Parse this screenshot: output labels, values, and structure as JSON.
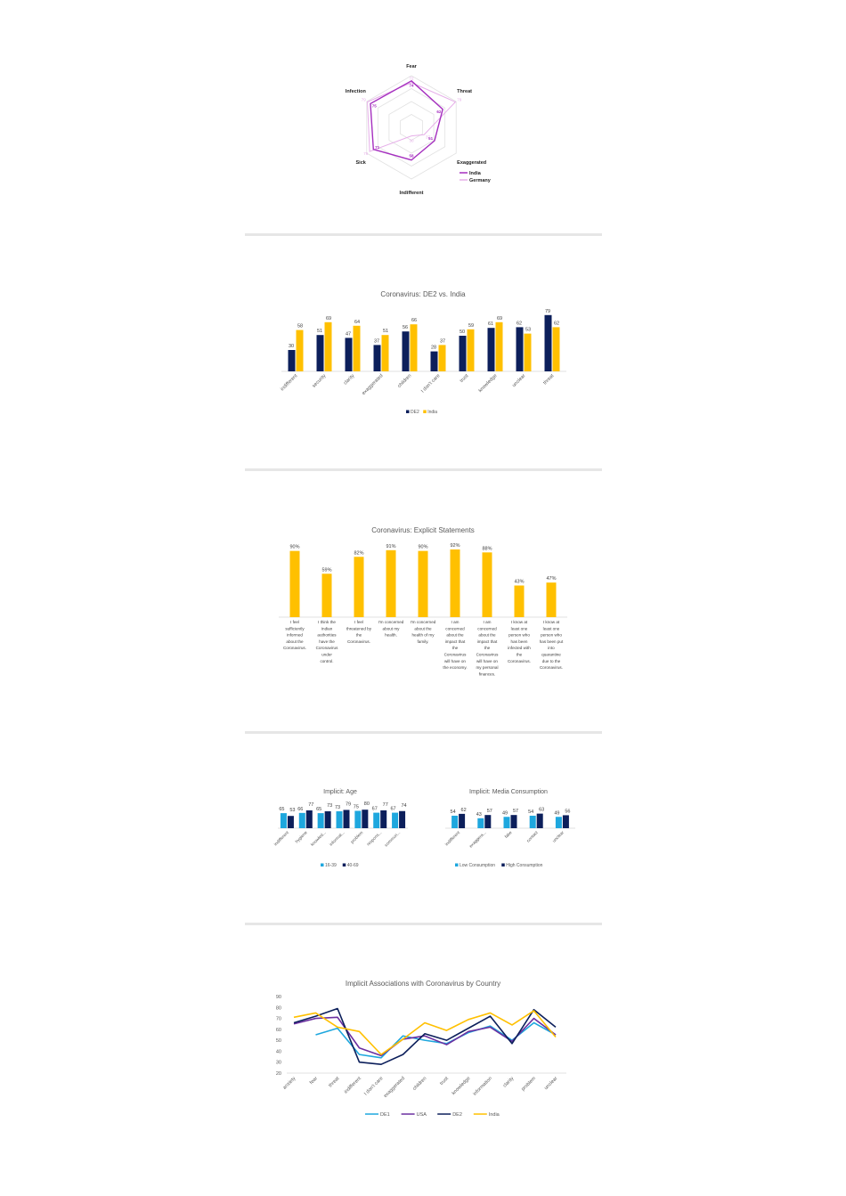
{
  "colors": {
    "india_radar": "#a52fbf",
    "germany_radar": "#e6afe9",
    "de2": "#0c1f5b",
    "india": "#ffc000",
    "light_blue": "#1ea7de",
    "usa": "#6b2fa0",
    "de1": "#1ea7de",
    "grid": "#d9d9d9"
  },
  "chart_data": [
    {
      "type": "radar",
      "axes": [
        "Fear",
        "Threat",
        "Exaggerated",
        "Indifferent",
        "Sick",
        "Infection"
      ],
      "series": [
        {
          "name": "India",
          "values": [
            74,
            62,
            51,
            58,
            71,
            75
          ]
        },
        {
          "name": "Germany",
          "values": [
            72,
            79,
            37,
            30,
            76,
            79
          ]
        }
      ],
      "rlim": [
        20,
        80
      ],
      "legend": "bottom-right"
    },
    {
      "type": "bar",
      "title": "Coronavirus: DE2 vs. India",
      "categories": [
        "indifferent",
        "security",
        "clarity",
        "exaggerated",
        "children",
        "I don't care",
        "trust",
        "knowledge",
        "unclear",
        "threat"
      ],
      "series": [
        {
          "name": "DE2",
          "values": [
            30,
            51,
            47,
            37,
            56,
            28,
            50,
            61,
            62,
            79
          ]
        },
        {
          "name": "India",
          "values": [
            58,
            69,
            64,
            51,
            66,
            37,
            59,
            69,
            53,
            62
          ]
        }
      ],
      "ylim": [
        0,
        85
      ],
      "legend": "bottom"
    },
    {
      "type": "bar",
      "title": "Coronavirus: Explicit Statements",
      "categories": [
        "I feel sufficiently informed about the Coronavirus.",
        "I think the Indian authorities have the Coronavirus under control.",
        "I feel threatened by the Coronavirus.",
        "I'm concerned about my health.",
        "I'm concerned about the health of my family.",
        "I am concerned about the impact that the Coronavirus will have on the economy.",
        "I am concerned about the impact that the Coronavirus will have on my personal finances.",
        "I know at least one person who has been infected with the Coronavirus.",
        "I know at least one person who has been put into quarantine due to the Coronavirus."
      ],
      "values": [
        90,
        59,
        82,
        91,
        90,
        92,
        88,
        43,
        47
      ],
      "value_suffix": "%",
      "ylim": [
        0,
        100
      ]
    },
    {
      "type": "bar",
      "title": "Implicit: Age",
      "categories": [
        "indifferent",
        "hygiene",
        "knowled...",
        "informat...",
        "problem",
        "respons...",
        "commun..."
      ],
      "series": [
        {
          "name": "16-39",
          "values": [
            65,
            66,
            65,
            73,
            75,
            67,
            67
          ]
        },
        {
          "name": "40-69",
          "values": [
            53,
            77,
            73,
            79,
            80,
            77,
            74
          ]
        }
      ],
      "ylim": [
        0,
        85
      ],
      "legend": "bottom"
    },
    {
      "type": "bar",
      "title": "Implicit: Media Consumption",
      "categories": [
        "indifferent",
        "exaggera...",
        "fake",
        "contact",
        "unclear"
      ],
      "series": [
        {
          "name": "Low Consumption",
          "values": [
            54,
            43,
            49,
            54,
            49
          ]
        },
        {
          "name": "High Consumption",
          "values": [
            62,
            57,
            57,
            63,
            56
          ]
        }
      ],
      "ylim": [
        0,
        85
      ],
      "legend": "bottom"
    },
    {
      "type": "line",
      "title": "Implicit Associations with Coronavirus by Country",
      "categories": [
        "anxiety",
        "fear",
        "threat",
        "indifferent",
        "I don't care",
        "exaggerated",
        "children",
        "trust",
        "knowledge",
        "information",
        "clarity",
        "problem",
        "unclear"
      ],
      "series": [
        {
          "name": "DE1",
          "values": [
            null,
            55,
            61,
            37,
            34,
            54,
            50,
            47,
            57,
            63,
            50,
            66,
            55
          ]
        },
        {
          "name": "USA",
          "values": [
            65,
            70,
            71,
            43,
            36,
            51,
            54,
            46,
            58,
            62,
            49,
            70,
            55
          ]
        },
        {
          "name": "DE2",
          "values": [
            66,
            72,
            79,
            30,
            28,
            37,
            56,
            50,
            61,
            72,
            47,
            78,
            62
          ]
        },
        {
          "name": "India",
          "values": [
            71,
            75,
            62,
            58,
            37,
            51,
            66,
            59,
            69,
            75,
            64,
            77,
            53
          ]
        }
      ],
      "yticks": [
        20,
        30,
        40,
        50,
        60,
        70,
        80,
        90
      ],
      "ylim": [
        20,
        90
      ],
      "grid": false,
      "legend": "bottom"
    }
  ]
}
